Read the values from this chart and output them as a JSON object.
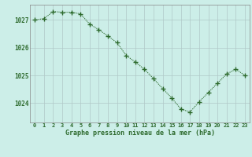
{
  "x": [
    0,
    1,
    2,
    3,
    4,
    5,
    6,
    7,
    8,
    9,
    10,
    11,
    12,
    13,
    14,
    15,
    16,
    17,
    18,
    19,
    20,
    21,
    22,
    23
  ],
  "y": [
    1027.0,
    1027.05,
    1027.3,
    1027.28,
    1027.28,
    1027.22,
    1026.85,
    1026.65,
    1026.42,
    1026.18,
    1025.72,
    1025.48,
    1025.22,
    1024.88,
    1024.52,
    1024.18,
    1023.78,
    1023.68,
    1024.05,
    1024.38,
    1024.72,
    1025.05,
    1025.22,
    1025.0
  ],
  "line_color": "#2d6a2d",
  "marker": "+",
  "bg_color": "#cceee8",
  "grid_color": "#b0c8c8",
  "xlabel": "Graphe pression niveau de la mer (hPa)",
  "xlabel_color": "#2d6a2d",
  "tick_color": "#2d6a2d",
  "ylim_min": 1023.3,
  "ylim_max": 1027.55,
  "yticks": [
    1024,
    1025,
    1026,
    1027
  ],
  "xticks": [
    0,
    1,
    2,
    3,
    4,
    5,
    6,
    7,
    8,
    9,
    10,
    11,
    12,
    13,
    14,
    15,
    16,
    17,
    18,
    19,
    20,
    21,
    22,
    23
  ]
}
